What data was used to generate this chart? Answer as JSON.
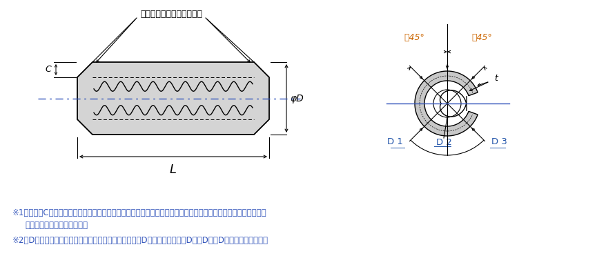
{
  "bg_color": "#ffffff",
  "line_color": "#000000",
  "blue_color": "#3355bb",
  "orange_color": "#cc6600",
  "dim_color": "#2255aa",
  "gray_fill": "#d4d4d4",
  "note1_line1": "※1　すきまCは、スプリングピンを適用する穴に挿入したとき、辺が接触しないような寸法でなければならない。",
  "note1_line2": "　（但し、両端部を除く。）",
  "note2": "※2　Dの最大寸法はピンの円周上における最大値とし、Dの最小寸法は　（D１＋D２＋D３）／３　とする。",
  "chamfer_label": "面取りの形状は任意とする",
  "angle_label_left": "絀45°",
  "angle_label_right": "絀45°",
  "label_phi_D": "φD",
  "label_L": "L",
  "label_C": "C",
  "label_t": "t",
  "label_D1": "D 1",
  "label_D2": "D 2",
  "label_D3": "D 3"
}
